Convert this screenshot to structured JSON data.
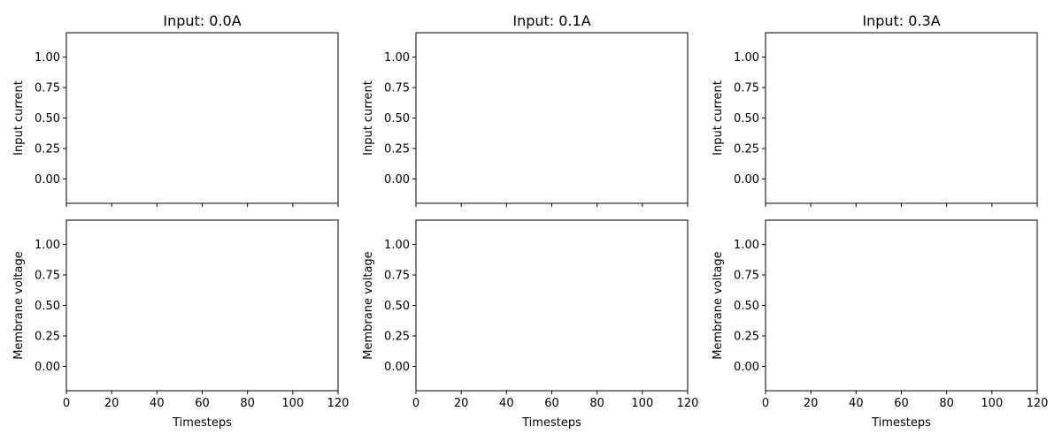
{
  "chart_data": [
    {
      "type": "line",
      "title": "Input: 0.0A",
      "panels": [
        {
          "ylabel": "Input current",
          "xlabel": "",
          "show_x_tick_labels": false,
          "xlim": [
            0,
            120
          ],
          "ylim": [
            -0.2,
            1.2
          ],
          "xticks": [
            0,
            20,
            40,
            60,
            80,
            100,
            120
          ],
          "yticks": [
            0.0,
            0.25,
            0.5,
            0.75,
            1.0
          ],
          "ytick_labels": [
            "0.00",
            "0.25",
            "0.50",
            "0.75",
            "1.00"
          ],
          "series": []
        },
        {
          "ylabel": "Membrane voltage",
          "xlabel": "Timesteps",
          "show_x_tick_labels": true,
          "xlim": [
            0,
            120
          ],
          "ylim": [
            -0.2,
            1.2
          ],
          "xticks": [
            0,
            20,
            40,
            60,
            80,
            100,
            120
          ],
          "xtick_labels": [
            "0",
            "20",
            "40",
            "60",
            "80",
            "100",
            "120"
          ],
          "yticks": [
            0.0,
            0.25,
            0.5,
            0.75,
            1.0
          ],
          "ytick_labels": [
            "0.00",
            "0.25",
            "0.50",
            "0.75",
            "1.00"
          ],
          "series": []
        }
      ]
    },
    {
      "type": "line",
      "title": "Input: 0.1A",
      "panels": [
        {
          "ylabel": "Input current",
          "xlabel": "",
          "show_x_tick_labels": false,
          "xlim": [
            0,
            120
          ],
          "ylim": [
            -0.2,
            1.2
          ],
          "xticks": [
            0,
            20,
            40,
            60,
            80,
            100,
            120
          ],
          "yticks": [
            0.0,
            0.25,
            0.5,
            0.75,
            1.0
          ],
          "ytick_labels": [
            "0.00",
            "0.25",
            "0.50",
            "0.75",
            "1.00"
          ],
          "series": []
        },
        {
          "ylabel": "Membrane voltage",
          "xlabel": "Timesteps",
          "show_x_tick_labels": true,
          "xlim": [
            0,
            120
          ],
          "ylim": [
            -0.2,
            1.2
          ],
          "xticks": [
            0,
            20,
            40,
            60,
            80,
            100,
            120
          ],
          "xtick_labels": [
            "0",
            "20",
            "40",
            "60",
            "80",
            "100",
            "120"
          ],
          "yticks": [
            0.0,
            0.25,
            0.5,
            0.75,
            1.0
          ],
          "ytick_labels": [
            "0.00",
            "0.25",
            "0.50",
            "0.75",
            "1.00"
          ],
          "series": []
        }
      ]
    },
    {
      "type": "line",
      "title": "Input: 0.3A",
      "panels": [
        {
          "ylabel": "Input current",
          "xlabel": "",
          "show_x_tick_labels": false,
          "xlim": [
            0,
            120
          ],
          "ylim": [
            -0.2,
            1.2
          ],
          "xticks": [
            0,
            20,
            40,
            60,
            80,
            100,
            120
          ],
          "yticks": [
            0.0,
            0.25,
            0.5,
            0.75,
            1.0
          ],
          "ytick_labels": [
            "0.00",
            "0.25",
            "0.50",
            "0.75",
            "1.00"
          ],
          "series": []
        },
        {
          "ylabel": "Membrane voltage",
          "xlabel": "Timesteps",
          "show_x_tick_labels": true,
          "xlim": [
            0,
            120
          ],
          "ylim": [
            -0.2,
            1.2
          ],
          "xticks": [
            0,
            20,
            40,
            60,
            80,
            100,
            120
          ],
          "xtick_labels": [
            "0",
            "20",
            "40",
            "60",
            "80",
            "100",
            "120"
          ],
          "yticks": [
            0.0,
            0.25,
            0.5,
            0.75,
            1.0
          ],
          "ytick_labels": [
            "0.00",
            "0.25",
            "0.50",
            "0.75",
            "1.00"
          ],
          "series": []
        }
      ]
    }
  ]
}
